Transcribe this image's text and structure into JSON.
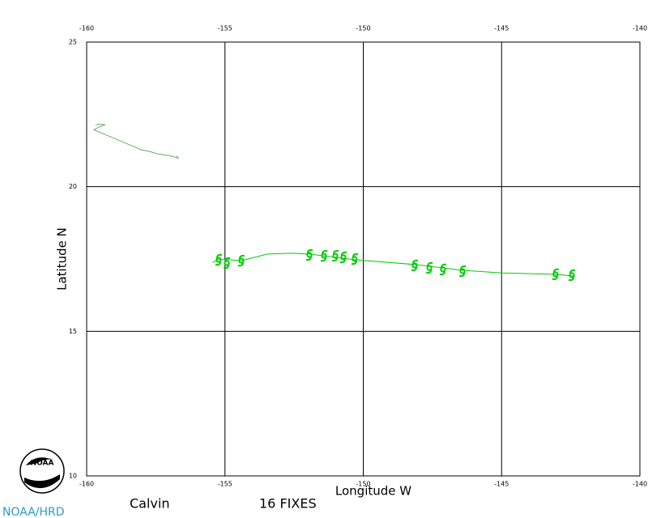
{
  "chart_data": {
    "type": "line",
    "xlabel": "Longitude W",
    "ylabel": "Latitude N",
    "xlim": [
      -160,
      -140
    ],
    "xticks": [
      -160,
      -155,
      -150,
      -145,
      -140
    ],
    "ylim": [
      10,
      25
    ],
    "yticks": [
      10,
      15,
      20,
      25
    ],
    "grid": true,
    "series": [
      {
        "color": "#00cc00",
        "x": [
          -155.45,
          -155.2,
          -154.41,
          -153.47,
          -152.6,
          -151.95,
          -150.25,
          -148.14,
          -146.44,
          -144.98,
          -143.05,
          -142.35
        ],
        "values": [
          17.38,
          17.5,
          17.44,
          17.67,
          17.7,
          17.67,
          17.47,
          17.31,
          17.11,
          17.02,
          16.97,
          16.91
        ]
      },
      {
        "color": "#66aa66",
        "x": [
          -159.68,
          -159.56,
          -159.33,
          -159.56,
          -159.74,
          -158.01,
          -157.72,
          -157.42,
          -156.98,
          -156.69,
          -156.75
        ],
        "values": [
          22.12,
          22.17,
          22.14,
          22.06,
          21.97,
          21.27,
          21.22,
          21.13,
          21.07,
          20.99,
          21.07
        ]
      }
    ],
    "fixes": {
      "color": "#00cc00",
      "x": [
        -155.23,
        -154.93,
        -154.41,
        -151.95,
        -151.42,
        -151.01,
        -150.72,
        -150.31,
        -148.14,
        -147.61,
        -147.12,
        -146.41,
        -143.05,
        -142.46
      ],
      "values": [
        17.47,
        17.36,
        17.44,
        17.64,
        17.61,
        17.61,
        17.56,
        17.5,
        17.28,
        17.19,
        17.14,
        17.08,
        16.97,
        16.94
      ]
    },
    "storm_name": "Calvin",
    "fixes_label": "16 FIXES",
    "logo_text": "NOAA",
    "credit": "NOAA/HRD"
  }
}
